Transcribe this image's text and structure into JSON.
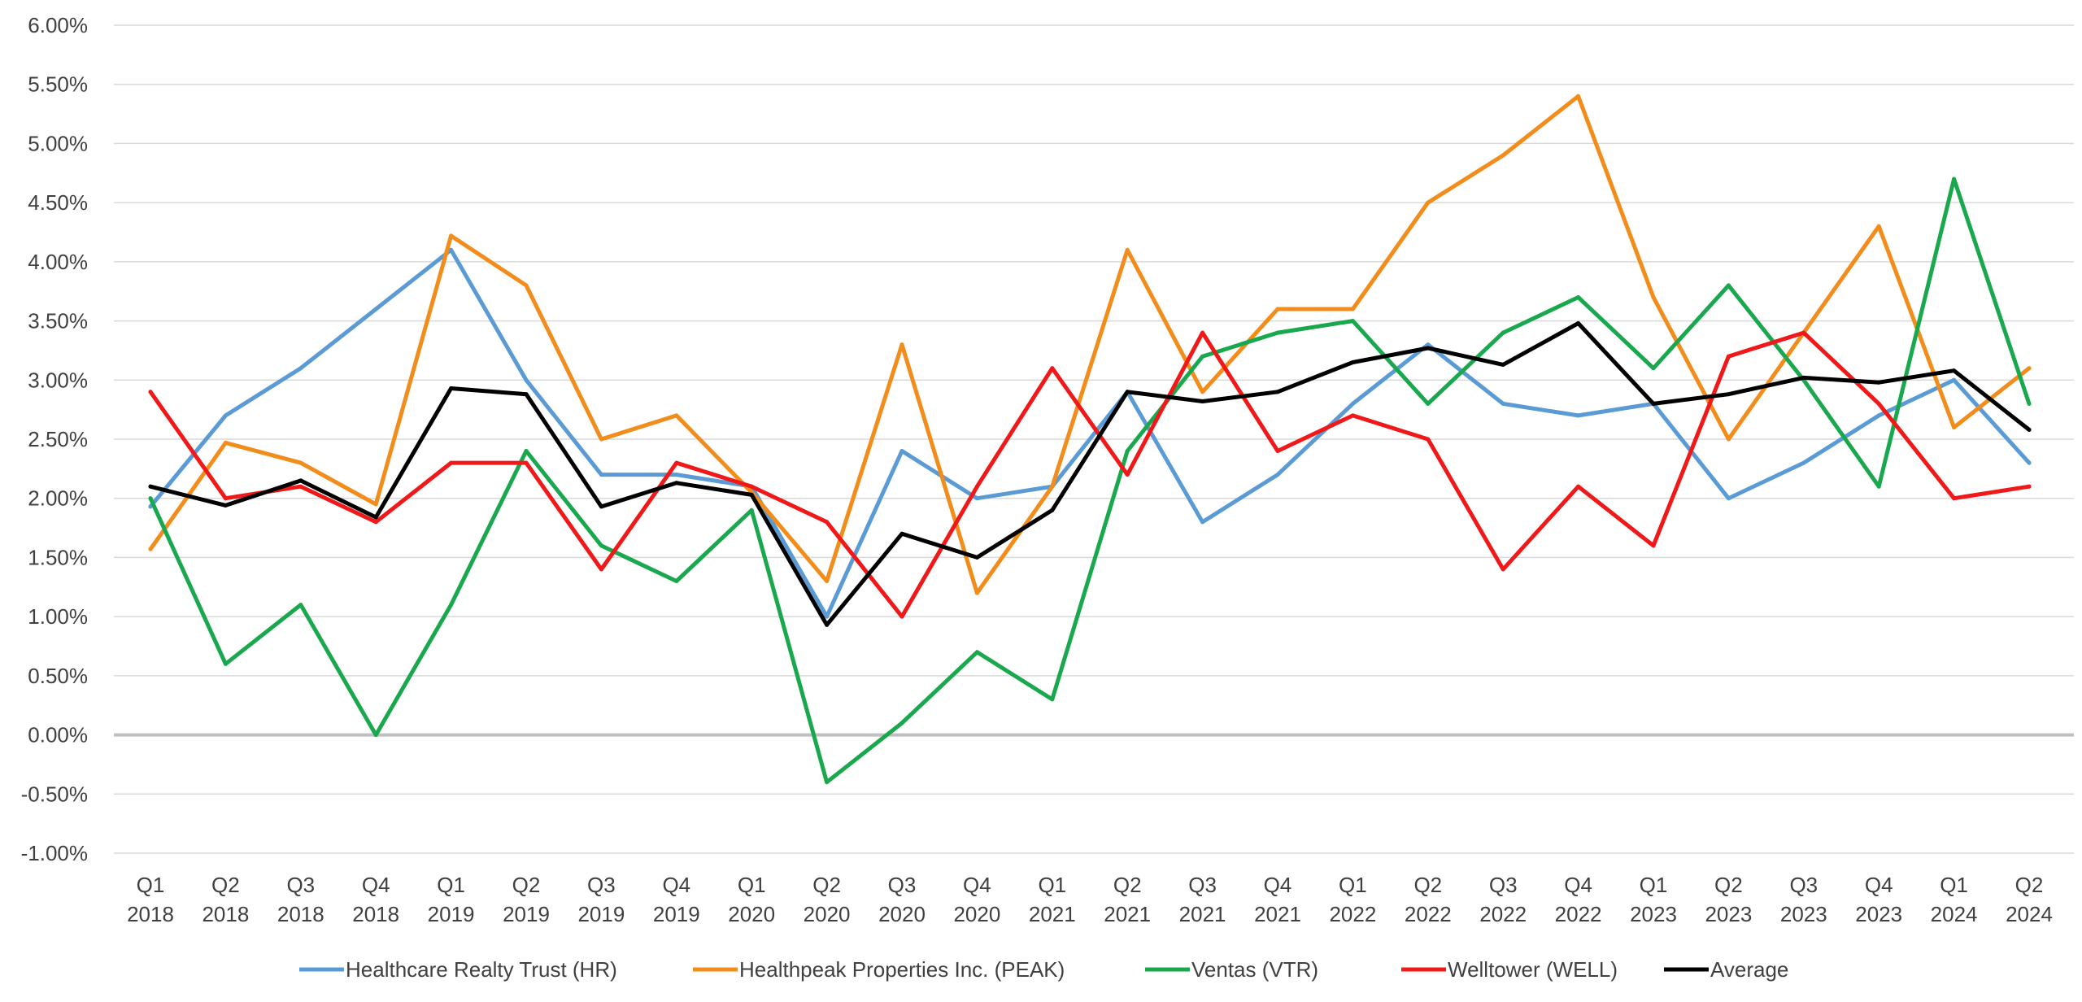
{
  "chart_data": {
    "type": "line",
    "title": "",
    "xlabel": "",
    "ylabel": "",
    "ylim": [
      -0.01,
      0.06
    ],
    "y_ticks": [
      "6.00%",
      "5.50%",
      "5.00%",
      "4.50%",
      "4.00%",
      "3.50%",
      "3.00%",
      "2.50%",
      "2.00%",
      "1.50%",
      "1.00%",
      "0.50%",
      "0.00%",
      "-0.50%",
      "-1.00%"
    ],
    "x": [
      {
        "q": "Q1",
        "y": "2018"
      },
      {
        "q": "Q2",
        "y": "2018"
      },
      {
        "q": "Q3",
        "y": "2018"
      },
      {
        "q": "Q4",
        "y": "2018"
      },
      {
        "q": "Q1",
        "y": "2019"
      },
      {
        "q": "Q2",
        "y": "2019"
      },
      {
        "q": "Q3",
        "y": "2019"
      },
      {
        "q": "Q4",
        "y": "2019"
      },
      {
        "q": "Q1",
        "y": "2020"
      },
      {
        "q": "Q2",
        "y": "2020"
      },
      {
        "q": "Q3",
        "y": "2020"
      },
      {
        "q": "Q4",
        "y": "2020"
      },
      {
        "q": "Q1",
        "y": "2021"
      },
      {
        "q": "Q2",
        "y": "2021"
      },
      {
        "q": "Q3",
        "y": "2021"
      },
      {
        "q": "Q4",
        "y": "2021"
      },
      {
        "q": "Q1",
        "y": "2022"
      },
      {
        "q": "Q2",
        "y": "2022"
      },
      {
        "q": "Q3",
        "y": "2022"
      },
      {
        "q": "Q4",
        "y": "2022"
      },
      {
        "q": "Q1",
        "y": "2023"
      },
      {
        "q": "Q2",
        "y": "2023"
      },
      {
        "q": "Q3",
        "y": "2023"
      },
      {
        "q": "Q4",
        "y": "2023"
      },
      {
        "q": "Q1",
        "y": "2024"
      },
      {
        "q": "Q2",
        "y": "2024"
      }
    ],
    "grid": true,
    "legend_position": "bottom",
    "series": [
      {
        "name": "Healthcare Realty Trust (HR)",
        "color": "#5b9bd5",
        "values": [
          1.93,
          2.7,
          3.1,
          3.6,
          4.1,
          3.0,
          2.2,
          2.2,
          2.1,
          1.0,
          2.4,
          2.0,
          2.1,
          2.9,
          1.8,
          2.2,
          2.8,
          3.3,
          2.8,
          2.7,
          2.8,
          2.0,
          2.3,
          2.7,
          3.0,
          2.3
        ]
      },
      {
        "name": "Healthpeak Properties Inc. (PEAK)",
        "color": "#f28c1b",
        "values": [
          1.57,
          2.47,
          2.3,
          1.95,
          4.22,
          3.8,
          2.5,
          2.7,
          2.05,
          1.3,
          3.3,
          1.2,
          2.1,
          4.1,
          2.9,
          3.6,
          3.6,
          4.5,
          4.9,
          5.4,
          3.7,
          2.5,
          3.4,
          4.3,
          2.6,
          3.1
        ]
      },
      {
        "name": "Ventas (VTR)",
        "color": "#1aa84e",
        "values": [
          2.0,
          0.6,
          1.1,
          0.0,
          1.1,
          2.4,
          1.6,
          1.3,
          1.9,
          -0.4,
          0.1,
          0.7,
          0.3,
          2.4,
          3.2,
          3.4,
          3.5,
          2.8,
          3.4,
          3.7,
          3.1,
          3.8,
          3.0,
          2.1,
          4.7,
          2.8
        ]
      },
      {
        "name": "Welltower (WELL)",
        "color": "#f01818",
        "values": [
          2.9,
          2.0,
          2.1,
          1.8,
          2.3,
          2.3,
          1.4,
          2.3,
          2.1,
          1.8,
          1.0,
          2.1,
          3.1,
          2.2,
          3.4,
          2.4,
          2.7,
          2.5,
          1.4,
          2.1,
          1.6,
          3.2,
          3.4,
          2.8,
          2.0,
          2.1
        ]
      },
      {
        "name": "Average",
        "color": "#000000",
        "values": [
          2.1,
          1.94,
          2.15,
          1.84,
          2.93,
          2.88,
          1.93,
          2.13,
          2.03,
          0.93,
          1.7,
          1.5,
          1.9,
          2.9,
          2.82,
          2.9,
          3.15,
          3.27,
          3.13,
          3.48,
          2.8,
          2.88,
          3.02,
          2.98,
          3.08,
          2.58
        ]
      }
    ]
  }
}
